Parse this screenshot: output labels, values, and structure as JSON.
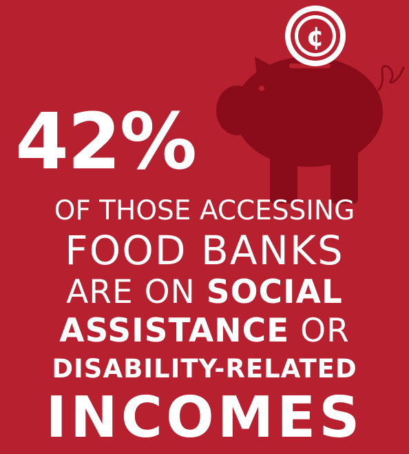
{
  "stat": {
    "value": "42%"
  },
  "lines": {
    "l1": "OF THOSE ACCESSING",
    "l2": "FOOD BANKS",
    "l3_regular": "ARE ON",
    "l3_bold": "SOCIAL",
    "l4_bold": "ASSISTANCE",
    "l4_regular": "OR",
    "l5": "DISABILITY-RELATED",
    "l6": "INCOMES"
  },
  "icons": {
    "piggy_bank": "piggy-bank-icon",
    "coin": "cent-coin-icon",
    "coin_symbol": "¢"
  },
  "colors": {
    "background": "#b6202f",
    "pig": "#8a0c1a",
    "text": "#ffffff"
  }
}
